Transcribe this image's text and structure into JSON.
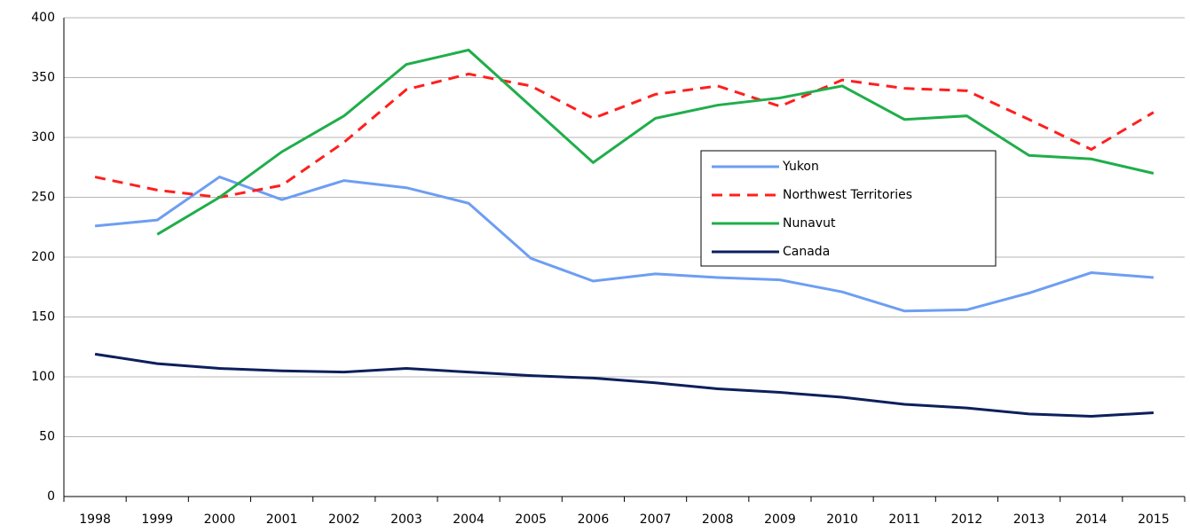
{
  "chart_data": {
    "type": "line",
    "categories": [
      "1998",
      "1999",
      "2000",
      "2001",
      "2002",
      "2003",
      "2004",
      "2005",
      "2006",
      "2007",
      "2008",
      "2009",
      "2010",
      "2011",
      "2012",
      "2013",
      "2014",
      "2015"
    ],
    "series": [
      {
        "name": "Yukon",
        "color": "#6d9ef2",
        "style": "solid",
        "values": [
          226,
          231,
          267,
          248,
          264,
          258,
          245,
          199,
          180,
          186,
          183,
          181,
          171,
          155,
          156,
          170,
          187,
          183
        ]
      },
      {
        "name": "Northwest Territories",
        "color": "#ff1f1f",
        "style": "dashed",
        "values": [
          267,
          256,
          250,
          260,
          296,
          340,
          353,
          343,
          316,
          336,
          343,
          326,
          348,
          341,
          339,
          315,
          290,
          321
        ]
      },
      {
        "name": "Nunavut",
        "color": "#1fae4a",
        "style": "solid",
        "values": [
          null,
          219,
          250,
          288,
          318,
          361,
          373,
          326,
          279,
          316,
          327,
          333,
          343,
          315,
          318,
          285,
          282,
          270
        ]
      },
      {
        "name": "Canada",
        "color": "#0d1f5c",
        "style": "solid",
        "values": [
          119,
          111,
          107,
          105,
          104,
          107,
          104,
          101,
          99,
          95,
          90,
          87,
          83,
          77,
          74,
          69,
          67,
          70
        ]
      }
    ],
    "ylim": [
      0,
      400
    ],
    "yticks": [
      0,
      50,
      100,
      150,
      200,
      250,
      300,
      350,
      400
    ],
    "grid": true,
    "legend": "center-right"
  }
}
